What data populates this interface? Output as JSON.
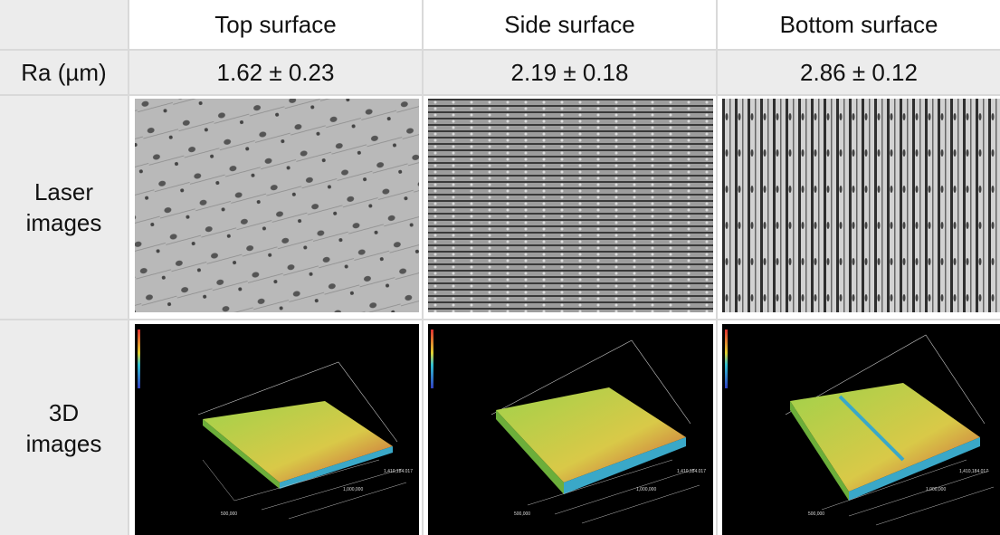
{
  "table": {
    "columns": [
      "Top surface",
      "Side surface",
      "Bottom surface"
    ],
    "rows": [
      {
        "label": "Ra (µm)",
        "cells": [
          "1.62 ± 0.23",
          "2.19 ± 0.18",
          "2.86 ± 0.12"
        ]
      },
      {
        "label": "Laser images"
      },
      {
        "label": "3D images"
      }
    ],
    "axis_labels": [
      "500,000",
      "1,000,000",
      "1,410,184.017"
    ]
  }
}
